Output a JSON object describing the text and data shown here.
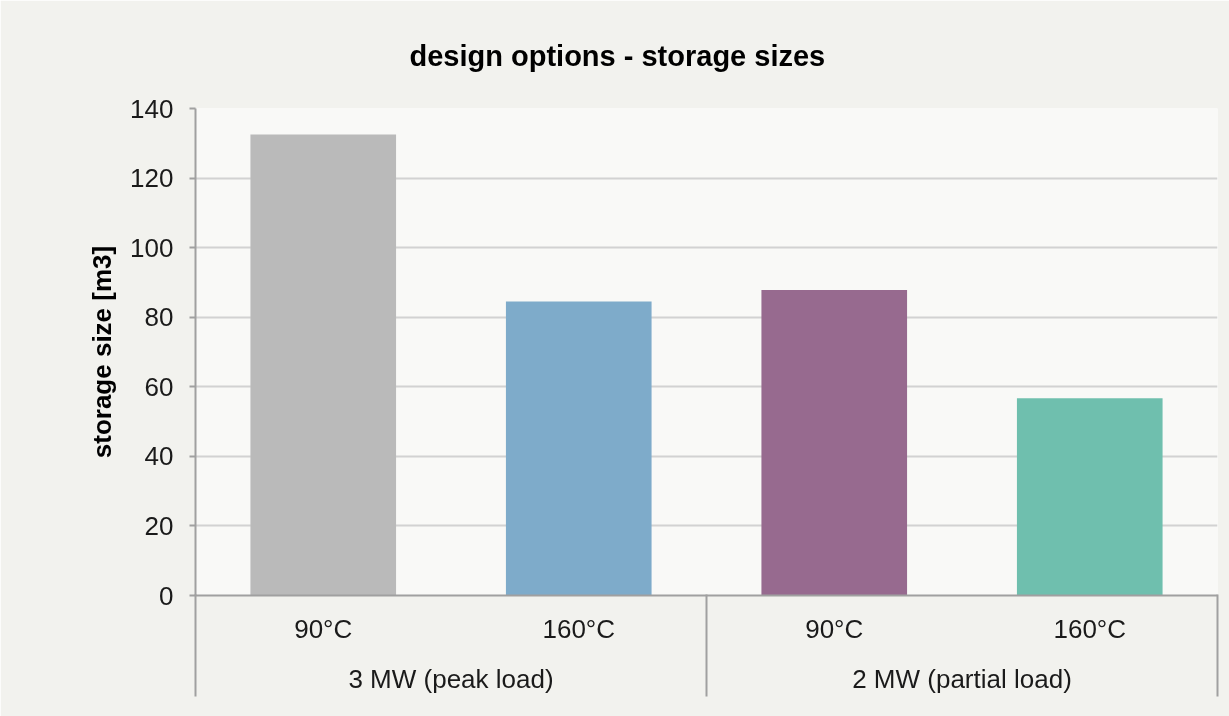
{
  "chart_data": {
    "type": "bar",
    "title": "design options - storage sizes",
    "ylabel": "storage size [m3]",
    "categories": [
      "90°C",
      "160°C",
      "90°C",
      "160°C"
    ],
    "values": [
      132.5,
      84.5,
      87.8,
      56.7
    ],
    "colors": [
      "#bababa",
      "#7eabca",
      "#976a8f",
      "#6fbfae"
    ],
    "ylim": [
      0,
      140
    ],
    "yticks": [
      0,
      20,
      40,
      60,
      80,
      100,
      120,
      140
    ],
    "grid": "y",
    "annotations": [
      "3 MW (peak load)",
      "2 MW (partial load)"
    ]
  }
}
